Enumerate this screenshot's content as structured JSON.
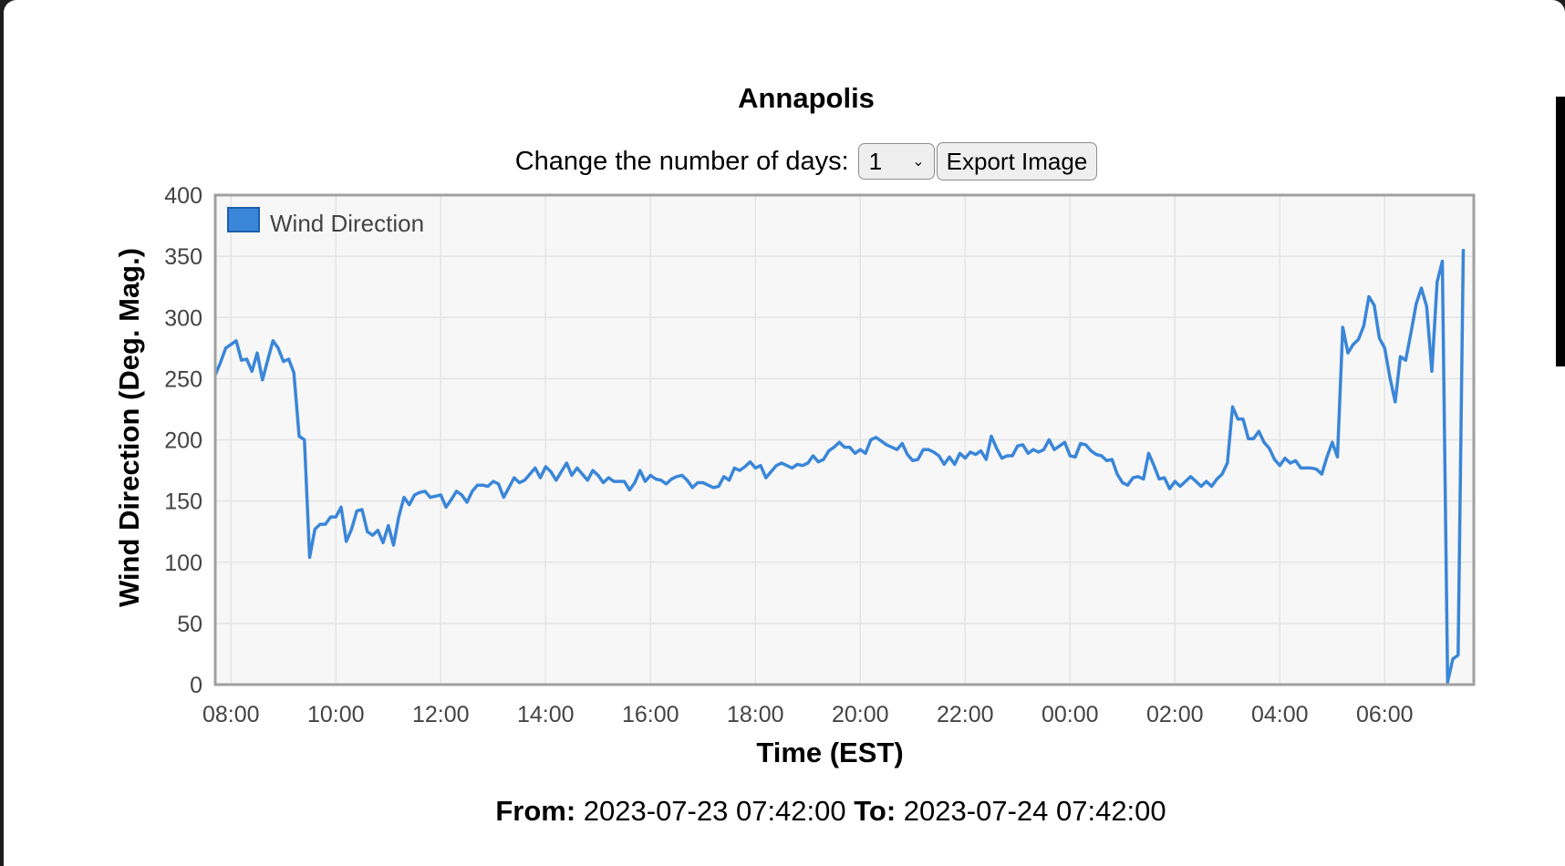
{
  "chart_data": {
    "type": "line",
    "title": "Annapolis",
    "xlabel": "Time (EST)",
    "ylabel": "Wind Direction (Deg. Mag.)",
    "ylim": [
      0,
      400
    ],
    "y_ticks": [
      "0",
      "50",
      "100",
      "150",
      "200",
      "250",
      "300",
      "350",
      "400"
    ],
    "x_range_hours": [
      7.7,
      31.7
    ],
    "x_ticks": [
      {
        "label": "08:00",
        "hour": 8
      },
      {
        "label": "10:00",
        "hour": 10
      },
      {
        "label": "12:00",
        "hour": 12
      },
      {
        "label": "14:00",
        "hour": 14
      },
      {
        "label": "16:00",
        "hour": 16
      },
      {
        "label": "18:00",
        "hour": 18
      },
      {
        "label": "20:00",
        "hour": 20
      },
      {
        "label": "22:00",
        "hour": 22
      },
      {
        "label": "00:00",
        "hour": 24
      },
      {
        "label": "02:00",
        "hour": 26
      },
      {
        "label": "04:00",
        "hour": 28
      },
      {
        "label": "06:00",
        "hour": 30
      }
    ],
    "grid": true,
    "legend": "top-left",
    "series": [
      {
        "name": "Wind Direction",
        "color": "#3a86d8",
        "points": [
          [
            7.7,
            253
          ],
          [
            7.8,
            263
          ],
          [
            7.9,
            275
          ],
          [
            8.0,
            278
          ],
          [
            8.1,
            281
          ],
          [
            8.2,
            265
          ],
          [
            8.3,
            266
          ],
          [
            8.4,
            256
          ],
          [
            8.5,
            271
          ],
          [
            8.6,
            249
          ],
          [
            8.7,
            265
          ],
          [
            8.8,
            281
          ],
          [
            8.9,
            275
          ],
          [
            9.0,
            264
          ],
          [
            9.1,
            266
          ],
          [
            9.2,
            255
          ],
          [
            9.3,
            203
          ],
          [
            9.4,
            200
          ],
          [
            9.5,
            104
          ],
          [
            9.6,
            127
          ],
          [
            9.7,
            131
          ],
          [
            9.8,
            131
          ],
          [
            9.9,
            137
          ],
          [
            10.0,
            137
          ],
          [
            10.1,
            145
          ],
          [
            10.2,
            117
          ],
          [
            10.3,
            127
          ],
          [
            10.4,
            142
          ],
          [
            10.5,
            143
          ],
          [
            10.6,
            125
          ],
          [
            10.7,
            122
          ],
          [
            10.8,
            126
          ],
          [
            10.9,
            116
          ],
          [
            11.0,
            130
          ],
          [
            11.1,
            114
          ],
          [
            11.2,
            137
          ],
          [
            11.3,
            153
          ],
          [
            11.4,
            147
          ],
          [
            11.5,
            155
          ],
          [
            11.6,
            157
          ],
          [
            11.7,
            158
          ],
          [
            11.8,
            153
          ],
          [
            11.9,
            154
          ],
          [
            12.0,
            155
          ],
          [
            12.1,
            145
          ],
          [
            12.2,
            151
          ],
          [
            12.3,
            158
          ],
          [
            12.4,
            155
          ],
          [
            12.5,
            149
          ],
          [
            12.6,
            158
          ],
          [
            12.7,
            163
          ],
          [
            12.8,
            163
          ],
          [
            12.9,
            162
          ],
          [
            13.0,
            166
          ],
          [
            13.1,
            164
          ],
          [
            13.2,
            153
          ],
          [
            13.3,
            161
          ],
          [
            13.4,
            169
          ],
          [
            13.5,
            165
          ],
          [
            13.6,
            167
          ],
          [
            13.7,
            172
          ],
          [
            13.8,
            177
          ],
          [
            13.9,
            169
          ],
          [
            14.0,
            178
          ],
          [
            14.1,
            174
          ],
          [
            14.2,
            167
          ],
          [
            14.3,
            174
          ],
          [
            14.4,
            181
          ],
          [
            14.5,
            171
          ],
          [
            14.6,
            177
          ],
          [
            14.7,
            172
          ],
          [
            14.8,
            167
          ],
          [
            14.9,
            175
          ],
          [
            15.0,
            171
          ],
          [
            15.1,
            165
          ],
          [
            15.2,
            169
          ],
          [
            15.3,
            166
          ],
          [
            15.4,
            166
          ],
          [
            15.5,
            166
          ],
          [
            15.6,
            159
          ],
          [
            15.7,
            165
          ],
          [
            15.8,
            175
          ],
          [
            15.9,
            166
          ],
          [
            16.0,
            171
          ],
          [
            16.1,
            168
          ],
          [
            16.2,
            167
          ],
          [
            16.3,
            164
          ],
          [
            16.4,
            168
          ],
          [
            16.5,
            170
          ],
          [
            16.6,
            171
          ],
          [
            16.7,
            167
          ],
          [
            16.8,
            161
          ],
          [
            16.9,
            165
          ],
          [
            17.0,
            165
          ],
          [
            17.1,
            163
          ],
          [
            17.2,
            161
          ],
          [
            17.3,
            162
          ],
          [
            17.4,
            170
          ],
          [
            17.5,
            167
          ],
          [
            17.6,
            177
          ],
          [
            17.7,
            175
          ],
          [
            17.8,
            178
          ],
          [
            17.9,
            182
          ],
          [
            18.0,
            177
          ],
          [
            18.1,
            179
          ],
          [
            18.2,
            169
          ],
          [
            18.3,
            174
          ],
          [
            18.4,
            179
          ],
          [
            18.5,
            181
          ],
          [
            18.6,
            179
          ],
          [
            18.7,
            177
          ],
          [
            18.8,
            180
          ],
          [
            18.9,
            179
          ],
          [
            19.0,
            181
          ],
          [
            19.1,
            187
          ],
          [
            19.2,
            182
          ],
          [
            19.3,
            184
          ],
          [
            19.4,
            191
          ],
          [
            19.5,
            194
          ],
          [
            19.6,
            198
          ],
          [
            19.7,
            194
          ],
          [
            19.8,
            194
          ],
          [
            19.9,
            189
          ],
          [
            20.0,
            192
          ],
          [
            20.1,
            189
          ],
          [
            20.2,
            200
          ],
          [
            20.3,
            202
          ],
          [
            20.4,
            199
          ],
          [
            20.5,
            196
          ],
          [
            20.6,
            194
          ],
          [
            20.7,
            192
          ],
          [
            20.8,
            197
          ],
          [
            20.9,
            188
          ],
          [
            21.0,
            183
          ],
          [
            21.1,
            184
          ],
          [
            21.2,
            192
          ],
          [
            21.3,
            192
          ],
          [
            21.4,
            190
          ],
          [
            21.5,
            187
          ],
          [
            21.6,
            180
          ],
          [
            21.7,
            186
          ],
          [
            21.8,
            180
          ],
          [
            21.9,
            189
          ],
          [
            22.0,
            185
          ],
          [
            22.1,
            190
          ],
          [
            22.2,
            188
          ],
          [
            22.3,
            191
          ],
          [
            22.4,
            184
          ],
          [
            22.5,
            203
          ],
          [
            22.6,
            193
          ],
          [
            22.7,
            185
          ],
          [
            22.8,
            187
          ],
          [
            22.9,
            187
          ],
          [
            23.0,
            195
          ],
          [
            23.1,
            196
          ],
          [
            23.2,
            189
          ],
          [
            23.3,
            192
          ],
          [
            23.4,
            190
          ],
          [
            23.5,
            192
          ],
          [
            23.6,
            200
          ],
          [
            23.7,
            192
          ],
          [
            23.8,
            195
          ],
          [
            23.9,
            198
          ],
          [
            24.0,
            187
          ],
          [
            24.1,
            186
          ],
          [
            24.2,
            197
          ],
          [
            24.3,
            196
          ],
          [
            24.4,
            191
          ],
          [
            24.5,
            188
          ],
          [
            24.6,
            187
          ],
          [
            24.7,
            183
          ],
          [
            24.8,
            184
          ],
          [
            24.9,
            172
          ],
          [
            25.0,
            165
          ],
          [
            25.1,
            163
          ],
          [
            25.2,
            169
          ],
          [
            25.3,
            170
          ],
          [
            25.4,
            168
          ],
          [
            25.5,
            189
          ],
          [
            25.6,
            179
          ],
          [
            25.7,
            168
          ],
          [
            25.8,
            169
          ],
          [
            25.9,
            160
          ],
          [
            26.0,
            166
          ],
          [
            26.1,
            162
          ],
          [
            26.2,
            166
          ],
          [
            26.3,
            170
          ],
          [
            26.4,
            166
          ],
          [
            26.5,
            162
          ],
          [
            26.6,
            166
          ],
          [
            26.7,
            162
          ],
          [
            26.8,
            168
          ],
          [
            26.9,
            172
          ],
          [
            27.0,
            181
          ],
          [
            27.1,
            227
          ],
          [
            27.2,
            217
          ],
          [
            27.3,
            217
          ],
          [
            27.4,
            201
          ],
          [
            27.5,
            201
          ],
          [
            27.6,
            207
          ],
          [
            27.7,
            198
          ],
          [
            27.8,
            193
          ],
          [
            27.9,
            184
          ],
          [
            28.0,
            179
          ],
          [
            28.1,
            185
          ],
          [
            28.2,
            181
          ],
          [
            28.3,
            183
          ],
          [
            28.4,
            177
          ],
          [
            28.5,
            177
          ],
          [
            28.6,
            177
          ],
          [
            28.7,
            176
          ],
          [
            28.8,
            172
          ],
          [
            28.9,
            186
          ],
          [
            29.0,
            198
          ],
          [
            29.1,
            186
          ],
          [
            29.2,
            292
          ],
          [
            29.3,
            271
          ],
          [
            29.4,
            278
          ],
          [
            29.5,
            282
          ],
          [
            29.6,
            293
          ],
          [
            29.7,
            317
          ],
          [
            29.8,
            310
          ],
          [
            29.9,
            283
          ],
          [
            30.0,
            275
          ],
          [
            30.1,
            251
          ],
          [
            30.2,
            231
          ],
          [
            30.3,
            268
          ],
          [
            30.4,
            265
          ],
          [
            30.5,
            287
          ],
          [
            30.6,
            311
          ],
          [
            30.7,
            324
          ],
          [
            30.8,
            309
          ],
          [
            30.9,
            256
          ],
          [
            31.0,
            329
          ],
          [
            31.1,
            346
          ],
          [
            31.2,
            2
          ],
          [
            31.3,
            21
          ],
          [
            31.4,
            24
          ],
          [
            31.5,
            356
          ]
        ]
      }
    ]
  },
  "controls": {
    "days_label": "Change the number of days:",
    "days_value": "1",
    "export_label": "Export Image"
  },
  "range": {
    "from_label": "From:",
    "from_value": "2023-07-23 07:42:00",
    "to_label": "To:",
    "to_value": "2023-07-24 07:42:00"
  }
}
